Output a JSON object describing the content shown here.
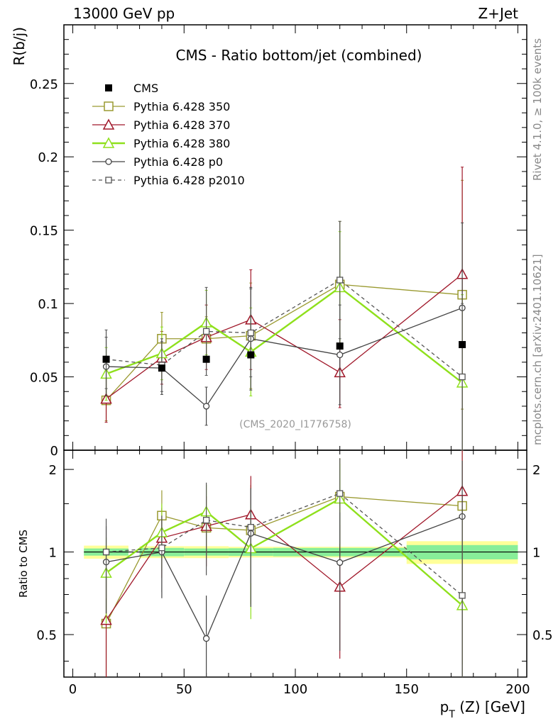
{
  "header": {
    "left": "13000 GeV pp",
    "right": "Z+Jet"
  },
  "side_labels": {
    "rivet": "Rivet 4.1.0, ≥ 100k events",
    "mcplots": "mcplots.cern.ch [arXiv:2401.10621]"
  },
  "chart_data": {
    "type": "scatter",
    "title": "CMS - Ratio bottom/jet (combined)",
    "watermark": "(CMS_2020_I1776758)",
    "xlabel": "p_T (Z) [GeV]",
    "xlabel_main": "p",
    "xlabel_sub": "T",
    "xlabel_rest": " (Z) [GeV]",
    "ylabel": "R(b/j)",
    "ratio_ylabel": "Ratio to CMS",
    "xlim": [
      -4,
      204
    ],
    "ylim": [
      0,
      0.29
    ],
    "ratio_ylim": [
      0.35,
      2.35
    ],
    "xticks": [
      0,
      50,
      100,
      150,
      200
    ],
    "xtick_labels": [
      "0",
      "50",
      "100",
      "150",
      "200"
    ],
    "yticks": [
      0,
      0.05,
      0.1,
      0.15,
      0.2,
      0.25
    ],
    "ytick_labels": [
      "0",
      "0.05",
      "0.1",
      "0.15",
      "0.2",
      "0.25"
    ],
    "ratio_yticks": [
      0.5,
      1,
      2
    ],
    "ratio_ytick_labels": [
      "0.5",
      "1",
      "2"
    ],
    "bins": [
      [
        5,
        25
      ],
      [
        30,
        50
      ],
      [
        50,
        70
      ],
      [
        70,
        90
      ],
      [
        90,
        150
      ],
      [
        150,
        200
      ]
    ],
    "x": [
      15,
      40,
      60,
      80,
      120,
      175
    ],
    "cms": {
      "name": "CMS",
      "values": [
        0.062,
        0.056,
        0.062,
        0.065,
        0.071,
        0.072
      ],
      "ratio_band_inner": [
        0.03,
        0.035,
        0.03,
        0.032,
        0.035,
        0.06
      ],
      "ratio_band_outer": [
        0.055,
        0.05,
        0.05,
        0.045,
        0.045,
        0.095
      ]
    },
    "series": [
      {
        "name": "Pythia 6.428 350",
        "color": "#9a9a30",
        "marker": "square-open",
        "dash": "",
        "values": [
          0.034,
          0.076,
          0.076,
          0.078,
          0.113,
          0.106
        ],
        "err_up": [
          0.016,
          0.018,
          0.015,
          0.036,
          0.043,
          0.078
        ],
        "err_dn": [
          0.014,
          0.018,
          0.015,
          0.036,
          0.043,
          0.078
        ]
      },
      {
        "name": "Pythia 6.428 370",
        "color": "#a0182a",
        "marker": "triangle-open",
        "dash": "",
        "values": [
          0.035,
          0.063,
          0.077,
          0.089,
          0.053,
          0.12
        ],
        "err_up": [
          0.016,
          0.018,
          0.022,
          0.034,
          0.036,
          0.073
        ],
        "err_dn": [
          0.016,
          0.018,
          0.022,
          0.034,
          0.024,
          0.12
        ]
      },
      {
        "name": "Pythia 6.428 380",
        "color": "#8fe01c",
        "marker": "triangle-open",
        "dash": "",
        "values": [
          0.052,
          0.066,
          0.087,
          0.067,
          0.111,
          0.046
        ],
        "err_up": [
          0.018,
          0.018,
          0.022,
          0.03,
          0.038,
          0.06
        ],
        "err_dn": [
          0.018,
          0.018,
          0.022,
          0.03,
          0.038,
          0.046
        ]
      },
      {
        "name": "Pythia 6.428 p0",
        "color": "#444444",
        "marker": "circle-open",
        "dash": "",
        "values": [
          0.057,
          0.056,
          0.03,
          0.076,
          0.065,
          0.097
        ],
        "err_up": [
          0.02,
          0.018,
          0.013,
          0.035,
          0.034,
          0.058
        ],
        "err_dn": [
          0.02,
          0.018,
          0.013,
          0.035,
          0.034,
          0.097
        ]
      },
      {
        "name": "Pythia 6.428 p2010",
        "color": "#555555",
        "marker": "square-small-open",
        "dash": "5,4",
        "values": [
          0.062,
          0.058,
          0.081,
          0.08,
          0.116,
          0.05
        ],
        "err_up": [
          0.02,
          0.018,
          0.03,
          0.03,
          0.04,
          0.05
        ],
        "err_dn": [
          0.02,
          0.018,
          0.03,
          0.03,
          0.04,
          0.05
        ]
      }
    ]
  }
}
